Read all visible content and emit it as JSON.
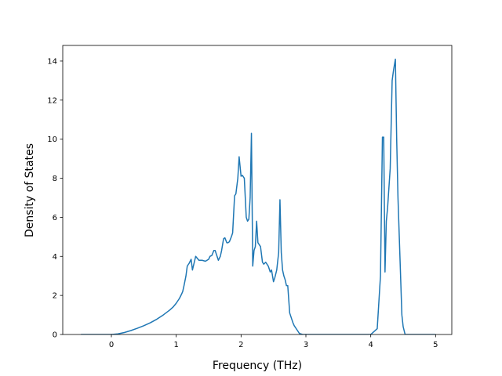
{
  "chart_data": {
    "type": "line",
    "title": "",
    "xlabel": "Frequency (THz)",
    "ylabel": "Density of States",
    "xlim": [
      -0.75,
      5.25
    ],
    "ylim": [
      0,
      14.8
    ],
    "xticks": [
      0,
      1,
      2,
      3,
      4,
      5
    ],
    "yticks": [
      0,
      2,
      4,
      6,
      8,
      10,
      12,
      14
    ],
    "grid": false,
    "legend": "none",
    "series": [
      {
        "color": "#1f77b4",
        "x": [
          -0.47,
          -0.2,
          0,
          0.1,
          0.2,
          0.3,
          0.4,
          0.5,
          0.6,
          0.7,
          0.8,
          0.9,
          0.95,
          1.0,
          1.05,
          1.08,
          1.1,
          1.12,
          1.15,
          1.17,
          1.2,
          1.23,
          1.25,
          1.3,
          1.35,
          1.4,
          1.45,
          1.5,
          1.52,
          1.55,
          1.58,
          1.6,
          1.63,
          1.65,
          1.68,
          1.7,
          1.73,
          1.75,
          1.78,
          1.8,
          1.82,
          1.85,
          1.87,
          1.9,
          1.92,
          1.95,
          1.97,
          2.0,
          2.02,
          2.05,
          2.08,
          2.1,
          2.12,
          2.14,
          2.16,
          2.18,
          2.2,
          2.22,
          2.24,
          2.26,
          2.3,
          2.33,
          2.35,
          2.38,
          2.4,
          2.42,
          2.45,
          2.47,
          2.5,
          2.52,
          2.55,
          2.58,
          2.6,
          2.62,
          2.64,
          2.66,
          2.68,
          2.7,
          2.72,
          2.75,
          2.78,
          2.8,
          2.82,
          2.85,
          2.9,
          2.95,
          3.0,
          3.05,
          3.5,
          4.0,
          4.1,
          4.15,
          4.18,
          4.2,
          4.22,
          4.24,
          4.26,
          4.28,
          4.3,
          4.33,
          4.35,
          4.38,
          4.4,
          4.42,
          4.45,
          4.48,
          4.5,
          4.53,
          4.56,
          4.7,
          5.0
        ],
        "y": [
          0,
          0,
          0,
          0.03,
          0.1,
          0.2,
          0.32,
          0.45,
          0.6,
          0.78,
          1.0,
          1.25,
          1.4,
          1.6,
          1.85,
          2.05,
          2.2,
          2.5,
          3.0,
          3.5,
          3.65,
          3.85,
          3.3,
          4.0,
          3.8,
          3.8,
          3.75,
          3.85,
          4.0,
          4.05,
          4.3,
          4.3,
          4.0,
          3.8,
          4.0,
          4.3,
          4.9,
          4.95,
          4.7,
          4.7,
          4.75,
          5.0,
          5.2,
          7.1,
          7.2,
          8.0,
          9.1,
          8.1,
          8.15,
          8.0,
          6.0,
          5.8,
          5.9,
          7.0,
          10.3,
          3.5,
          4.3,
          4.5,
          5.8,
          4.7,
          4.5,
          3.7,
          3.6,
          3.7,
          3.6,
          3.5,
          3.2,
          3.3,
          2.7,
          2.9,
          3.3,
          4.2,
          6.9,
          4.2,
          3.3,
          3.0,
          2.8,
          2.5,
          2.5,
          1.1,
          0.8,
          0.6,
          0.45,
          0.3,
          0.05,
          0,
          0,
          0,
          0,
          0,
          0.3,
          3.0,
          10.1,
          10.1,
          3.2,
          5.8,
          6.5,
          7.5,
          8.5,
          13.0,
          13.5,
          14.1,
          10.0,
          7.0,
          4.0,
          1.0,
          0.4,
          0,
          0,
          0,
          0
        ]
      }
    ]
  }
}
